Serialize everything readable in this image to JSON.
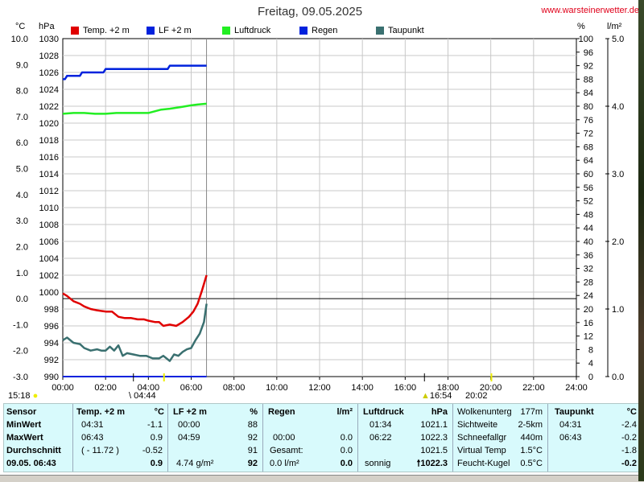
{
  "title": "Freitag, 09.05.2025",
  "site": "www.warsteinerwetter.de",
  "units": {
    "celsius": "°C",
    "hpa": "hPa",
    "percent": "%",
    "rain": "l/m²"
  },
  "legend": [
    {
      "label": "Temp. +2 m",
      "color": "#e00000"
    },
    {
      "label": "LF +2 m",
      "color": "#0022dd"
    },
    {
      "label": "Luftdruck",
      "color": "#22ee22"
    },
    {
      "label": "Regen",
      "color": "#0022dd"
    },
    {
      "label": "Taupunkt",
      "color": "#3a7070"
    }
  ],
  "chart_data": {
    "type": "line",
    "title": "Freitag, 09.05.2025",
    "x_ticks": [
      "00:00",
      "02:00",
      "04:00",
      "06:00",
      "08:00",
      "10:00",
      "12:00",
      "14:00",
      "16:00",
      "18:00",
      "20:00",
      "22:00",
      "24:00"
    ],
    "y_axes": {
      "temp_c": {
        "range": [
          -3.0,
          10.0
        ],
        "ticks": [
          "10.0",
          "9.0",
          "8.0",
          "7.0",
          "6.0",
          "5.0",
          "4.0",
          "3.0",
          "2.0",
          "1.0",
          "0.0",
          "-1.0",
          "-2.0",
          "-3.0"
        ]
      },
      "pressure_hpa": {
        "range": [
          990,
          1030
        ],
        "ticks": [
          "1030",
          "1028",
          "1026",
          "1024",
          "1022",
          "1020",
          "1018",
          "1016",
          "1014",
          "1012",
          "1010",
          "1008",
          "1006",
          "1004",
          "1002",
          "1000",
          "998",
          "996",
          "994",
          "992",
          "990"
        ]
      },
      "humidity_pct": {
        "range": [
          0,
          100
        ],
        "ticks": [
          "100",
          "96",
          "92",
          "88",
          "84",
          "80",
          "76",
          "72",
          "68",
          "64",
          "60",
          "56",
          "52",
          "48",
          "44",
          "40",
          "36",
          "32",
          "28",
          "24",
          "20",
          "16",
          "12",
          "8",
          "4",
          "0"
        ]
      },
      "rain_lm2": {
        "range": [
          0,
          5
        ],
        "ticks": [
          "5.0",
          "4.0",
          "3.0",
          "2.0",
          "1.0",
          "0.0"
        ]
      }
    },
    "series": [
      {
        "name": "Temp. +2 m",
        "axis": "temp_c",
        "color": "#e00000",
        "x": [
          0.0,
          0.2,
          0.5,
          0.8,
          1.0,
          1.3,
          1.6,
          2.0,
          2.3,
          2.6,
          2.9,
          3.2,
          3.5,
          3.8,
          4.0,
          4.3,
          4.5,
          4.7,
          5.0,
          5.3,
          5.6,
          5.9,
          6.1,
          6.3,
          6.5,
          6.72
        ],
        "y": [
          0.2,
          0.1,
          -0.1,
          -0.2,
          -0.3,
          -0.4,
          -0.45,
          -0.5,
          -0.5,
          -0.7,
          -0.75,
          -0.75,
          -0.8,
          -0.8,
          -0.85,
          -0.9,
          -0.9,
          -1.05,
          -1.0,
          -1.05,
          -0.9,
          -0.7,
          -0.5,
          -0.2,
          0.3,
          0.9
        ]
      },
      {
        "name": "Taupunkt",
        "axis": "temp_c",
        "color": "#3a7070",
        "x": [
          0.0,
          0.2,
          0.5,
          0.8,
          1.0,
          1.3,
          1.6,
          1.8,
          2.0,
          2.2,
          2.4,
          2.6,
          2.8,
          3.0,
          3.3,
          3.6,
          3.9,
          4.2,
          4.5,
          4.7,
          5.0,
          5.2,
          5.4,
          5.6,
          5.8,
          6.0,
          6.2,
          6.4,
          6.6,
          6.72
        ],
        "y": [
          -1.6,
          -1.5,
          -1.7,
          -1.75,
          -1.9,
          -2.0,
          -1.95,
          -2.0,
          -2.0,
          -1.85,
          -2.0,
          -1.8,
          -2.2,
          -2.1,
          -2.15,
          -2.2,
          -2.2,
          -2.3,
          -2.3,
          -2.2,
          -2.4,
          -2.15,
          -2.2,
          -2.05,
          -1.95,
          -1.9,
          -1.6,
          -1.35,
          -0.9,
          -0.2
        ]
      },
      {
        "name": "LF +2 m",
        "axis": "humidity_pct",
        "color": "#0022dd",
        "x": [
          0.0,
          0.1,
          0.2,
          0.5,
          0.8,
          0.9,
          1.2,
          1.5,
          1.7,
          1.9,
          2.0,
          2.3,
          2.5,
          2.6,
          3.0,
          3.5,
          4.0,
          4.5,
          4.9,
          5.0,
          5.5,
          6.0,
          6.5,
          6.72
        ],
        "y": [
          88,
          88,
          89,
          89,
          89,
          90,
          90,
          90,
          90,
          90,
          91,
          91,
          91,
          91,
          91,
          91,
          91,
          91,
          91,
          92,
          92,
          92,
          92,
          92
        ]
      },
      {
        "name": "Luftdruck",
        "axis": "pressure_hpa",
        "color": "#22ee22",
        "x": [
          0.0,
          0.5,
          1.0,
          1.5,
          2.0,
          2.5,
          3.0,
          3.5,
          4.0,
          4.3,
          4.6,
          5.0,
          5.5,
          6.0,
          6.3,
          6.72
        ],
        "y": [
          1021.1,
          1021.2,
          1021.2,
          1021.1,
          1021.1,
          1021.2,
          1021.2,
          1021.2,
          1021.2,
          1021.4,
          1021.6,
          1021.7,
          1021.9,
          1022.1,
          1022.2,
          1022.3
        ]
      },
      {
        "name": "Regen",
        "axis": "rain_lm2",
        "color": "#0022dd",
        "x": [
          0.0,
          6.72
        ],
        "y": [
          0.0,
          0.0
        ]
      }
    ],
    "current_time": "06:43"
  },
  "sun": {
    "sunrise_marker": "15:18",
    "dawn": "04:44",
    "sunset": "16:54",
    "dusk": "20:02"
  },
  "table": {
    "sensor": {
      "header": "Sensor",
      "rows": [
        "MinWert",
        "MaxWert",
        "Durchschnitt",
        "09.05. 06:43"
      ]
    },
    "temp": {
      "header": "Temp. +2 m",
      "unit": "°C",
      "rows": [
        [
          "04:31",
          "-1.1"
        ],
        [
          "06:43",
          "0.9"
        ],
        [
          "( - 11.72 )",
          "-0.52"
        ],
        [
          "",
          "0.9"
        ]
      ]
    },
    "lf": {
      "header": "LF +2 m",
      "unit": "%",
      "rows": [
        [
          "00:00",
          "88"
        ],
        [
          "04:59",
          "92"
        ],
        [
          "",
          "91"
        ],
        [
          "4.74 g/m²",
          "92"
        ]
      ]
    },
    "regen": {
      "header": "Regen",
      "unit": "l/m²",
      "rows": [
        [
          "",
          ""
        ],
        [
          "00:00",
          "0.0"
        ],
        [
          "Gesamt:",
          "0.0"
        ],
        [
          "0.0 l/m²",
          "0.0"
        ]
      ]
    },
    "luftdruck": {
      "header": "Luftdruck",
      "unit": "hPa",
      "rows": [
        [
          "01:34",
          "1021.1"
        ],
        [
          "06:22",
          "1022.3"
        ],
        [
          "",
          "1021.5"
        ],
        [
          "sonnig",
          "1022.3"
        ]
      ]
    },
    "extra": {
      "rows": [
        [
          "Wolkenunterg",
          "177m"
        ],
        [
          "Sichtweite",
          "2-5km"
        ],
        [
          "Schneefallgr",
          "440m"
        ],
        [
          "Virtual Temp",
          "1.5°C"
        ],
        [
          "Feucht-Kugel",
          "0.5°C"
        ]
      ]
    },
    "taupunkt": {
      "header": "Taupunkt",
      "unit": "°C",
      "rows": [
        [
          "04:31",
          "-2.4"
        ],
        [
          "06:43",
          "-0.2"
        ],
        [
          "",
          "-1.8"
        ],
        [
          "",
          "-0.2"
        ]
      ]
    }
  }
}
